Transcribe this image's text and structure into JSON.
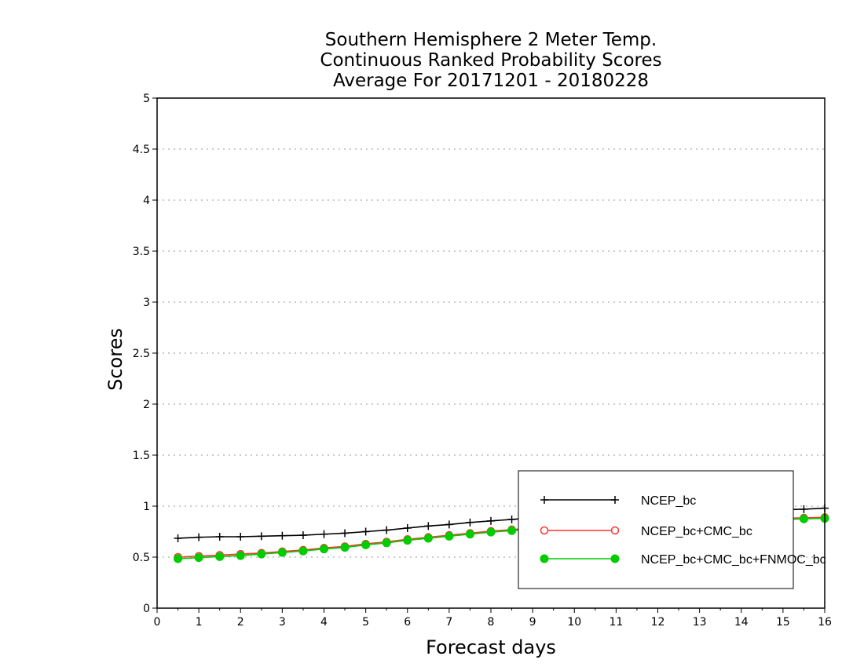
{
  "chart_data": {
    "type": "line",
    "title_lines": [
      "Southern Hemisphere 2 Meter Temp.",
      "Continuous Ranked Probability Scores",
      "Average For 20171201 - 20180228"
    ],
    "xlabel": "Forecast days",
    "ylabel": "Scores",
    "xlim": [
      0,
      16
    ],
    "ylim": [
      0,
      5
    ],
    "x_ticks": [
      "0",
      "1",
      "2",
      "3",
      "4",
      "5",
      "6",
      "7",
      "8",
      "9",
      "10",
      "11",
      "12",
      "13",
      "14",
      "15",
      "16"
    ],
    "y_ticks": [
      "0",
      "0.5",
      "1",
      "1.5",
      "2",
      "2.5",
      "3",
      "3.5",
      "4",
      "4.5",
      "5"
    ],
    "grid": "horizontal dotted",
    "legend_position": "bottom-right",
    "x": [
      0.5,
      1,
      1.5,
      2,
      2.5,
      3,
      3.5,
      4,
      4.5,
      5,
      5.5,
      6,
      6.5,
      7,
      7.5,
      8,
      8.5,
      9,
      9.5,
      10,
      10.5,
      11,
      11.5,
      12,
      12.5,
      13,
      13.5,
      14,
      14.5,
      15,
      15.5,
      16
    ],
    "series": [
      {
        "name": "NCEP_bc",
        "color": "#000000",
        "marker": "plus",
        "values": [
          0.685,
          0.695,
          0.7,
          0.7,
          0.705,
          0.71,
          0.715,
          0.725,
          0.735,
          0.75,
          0.765,
          0.785,
          0.805,
          0.82,
          0.84,
          0.855,
          0.87,
          0.885,
          0.895,
          0.905,
          0.915,
          0.925,
          0.93,
          0.935,
          0.94,
          0.945,
          0.95,
          0.955,
          0.96,
          0.965,
          0.97,
          0.98
        ]
      },
      {
        "name": "NCEP_bc+CMC_bc",
        "color": "#ff3333",
        "marker": "open-circle",
        "values": [
          0.5,
          0.51,
          0.52,
          0.53,
          0.54,
          0.555,
          0.57,
          0.59,
          0.605,
          0.63,
          0.65,
          0.675,
          0.695,
          0.715,
          0.735,
          0.755,
          0.77,
          0.785,
          0.8,
          0.81,
          0.82,
          0.83,
          0.84,
          0.85,
          0.855,
          0.86,
          0.865,
          0.87,
          0.875,
          0.88,
          0.885,
          0.89
        ]
      },
      {
        "name": "NCEP_bc+CMC_bc+FNMOC_bc",
        "color": "#00cc00",
        "marker": "filled-circle",
        "values": [
          0.485,
          0.495,
          0.505,
          0.515,
          0.53,
          0.545,
          0.56,
          0.58,
          0.595,
          0.62,
          0.64,
          0.665,
          0.685,
          0.705,
          0.725,
          0.745,
          0.76,
          0.775,
          0.79,
          0.8,
          0.81,
          0.82,
          0.83,
          0.84,
          0.845,
          0.85,
          0.855,
          0.86,
          0.865,
          0.87,
          0.875,
          0.88
        ]
      }
    ]
  }
}
